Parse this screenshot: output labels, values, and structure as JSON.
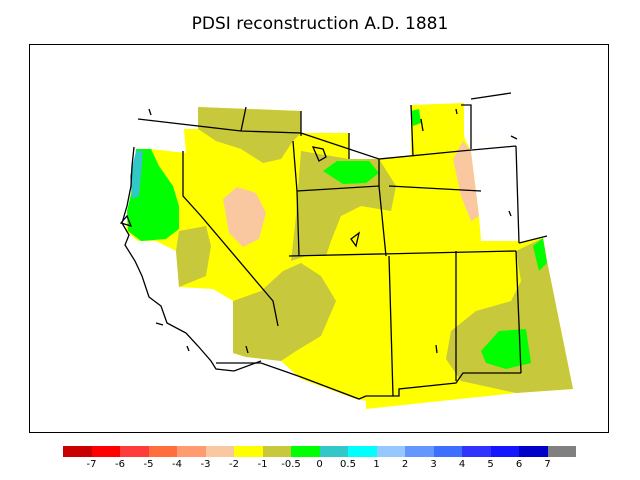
{
  "title": "PDSI reconstruction A.D. 1881",
  "colors": {
    "yellow": "#ffff00",
    "olive": "#c8c83c",
    "peach": "#fac8a0",
    "green": "#00ff00",
    "teal": "#32c8c8",
    "frame": "#000000",
    "no_data": "#ffffff"
  },
  "legend": {
    "colors": [
      "#c80000",
      "#ff0000",
      "#ff3c3c",
      "#ff6e3c",
      "#ff9b6e",
      "#fac8a0",
      "#ffff00",
      "#c8c83c",
      "#00ff00",
      "#32c8c8",
      "#00ffff",
      "#96c8ff",
      "#6496ff",
      "#3c6eff",
      "#3232ff",
      "#1414ff",
      "#0000c8",
      "#808080"
    ],
    "labels": [
      "-7",
      "-6",
      "-5",
      "-4",
      "-3",
      "-2",
      "-1",
      "-0.5",
      "0",
      "0.5",
      "1",
      "2",
      "3",
      "4",
      "5",
      "6",
      "7"
    ]
  }
}
